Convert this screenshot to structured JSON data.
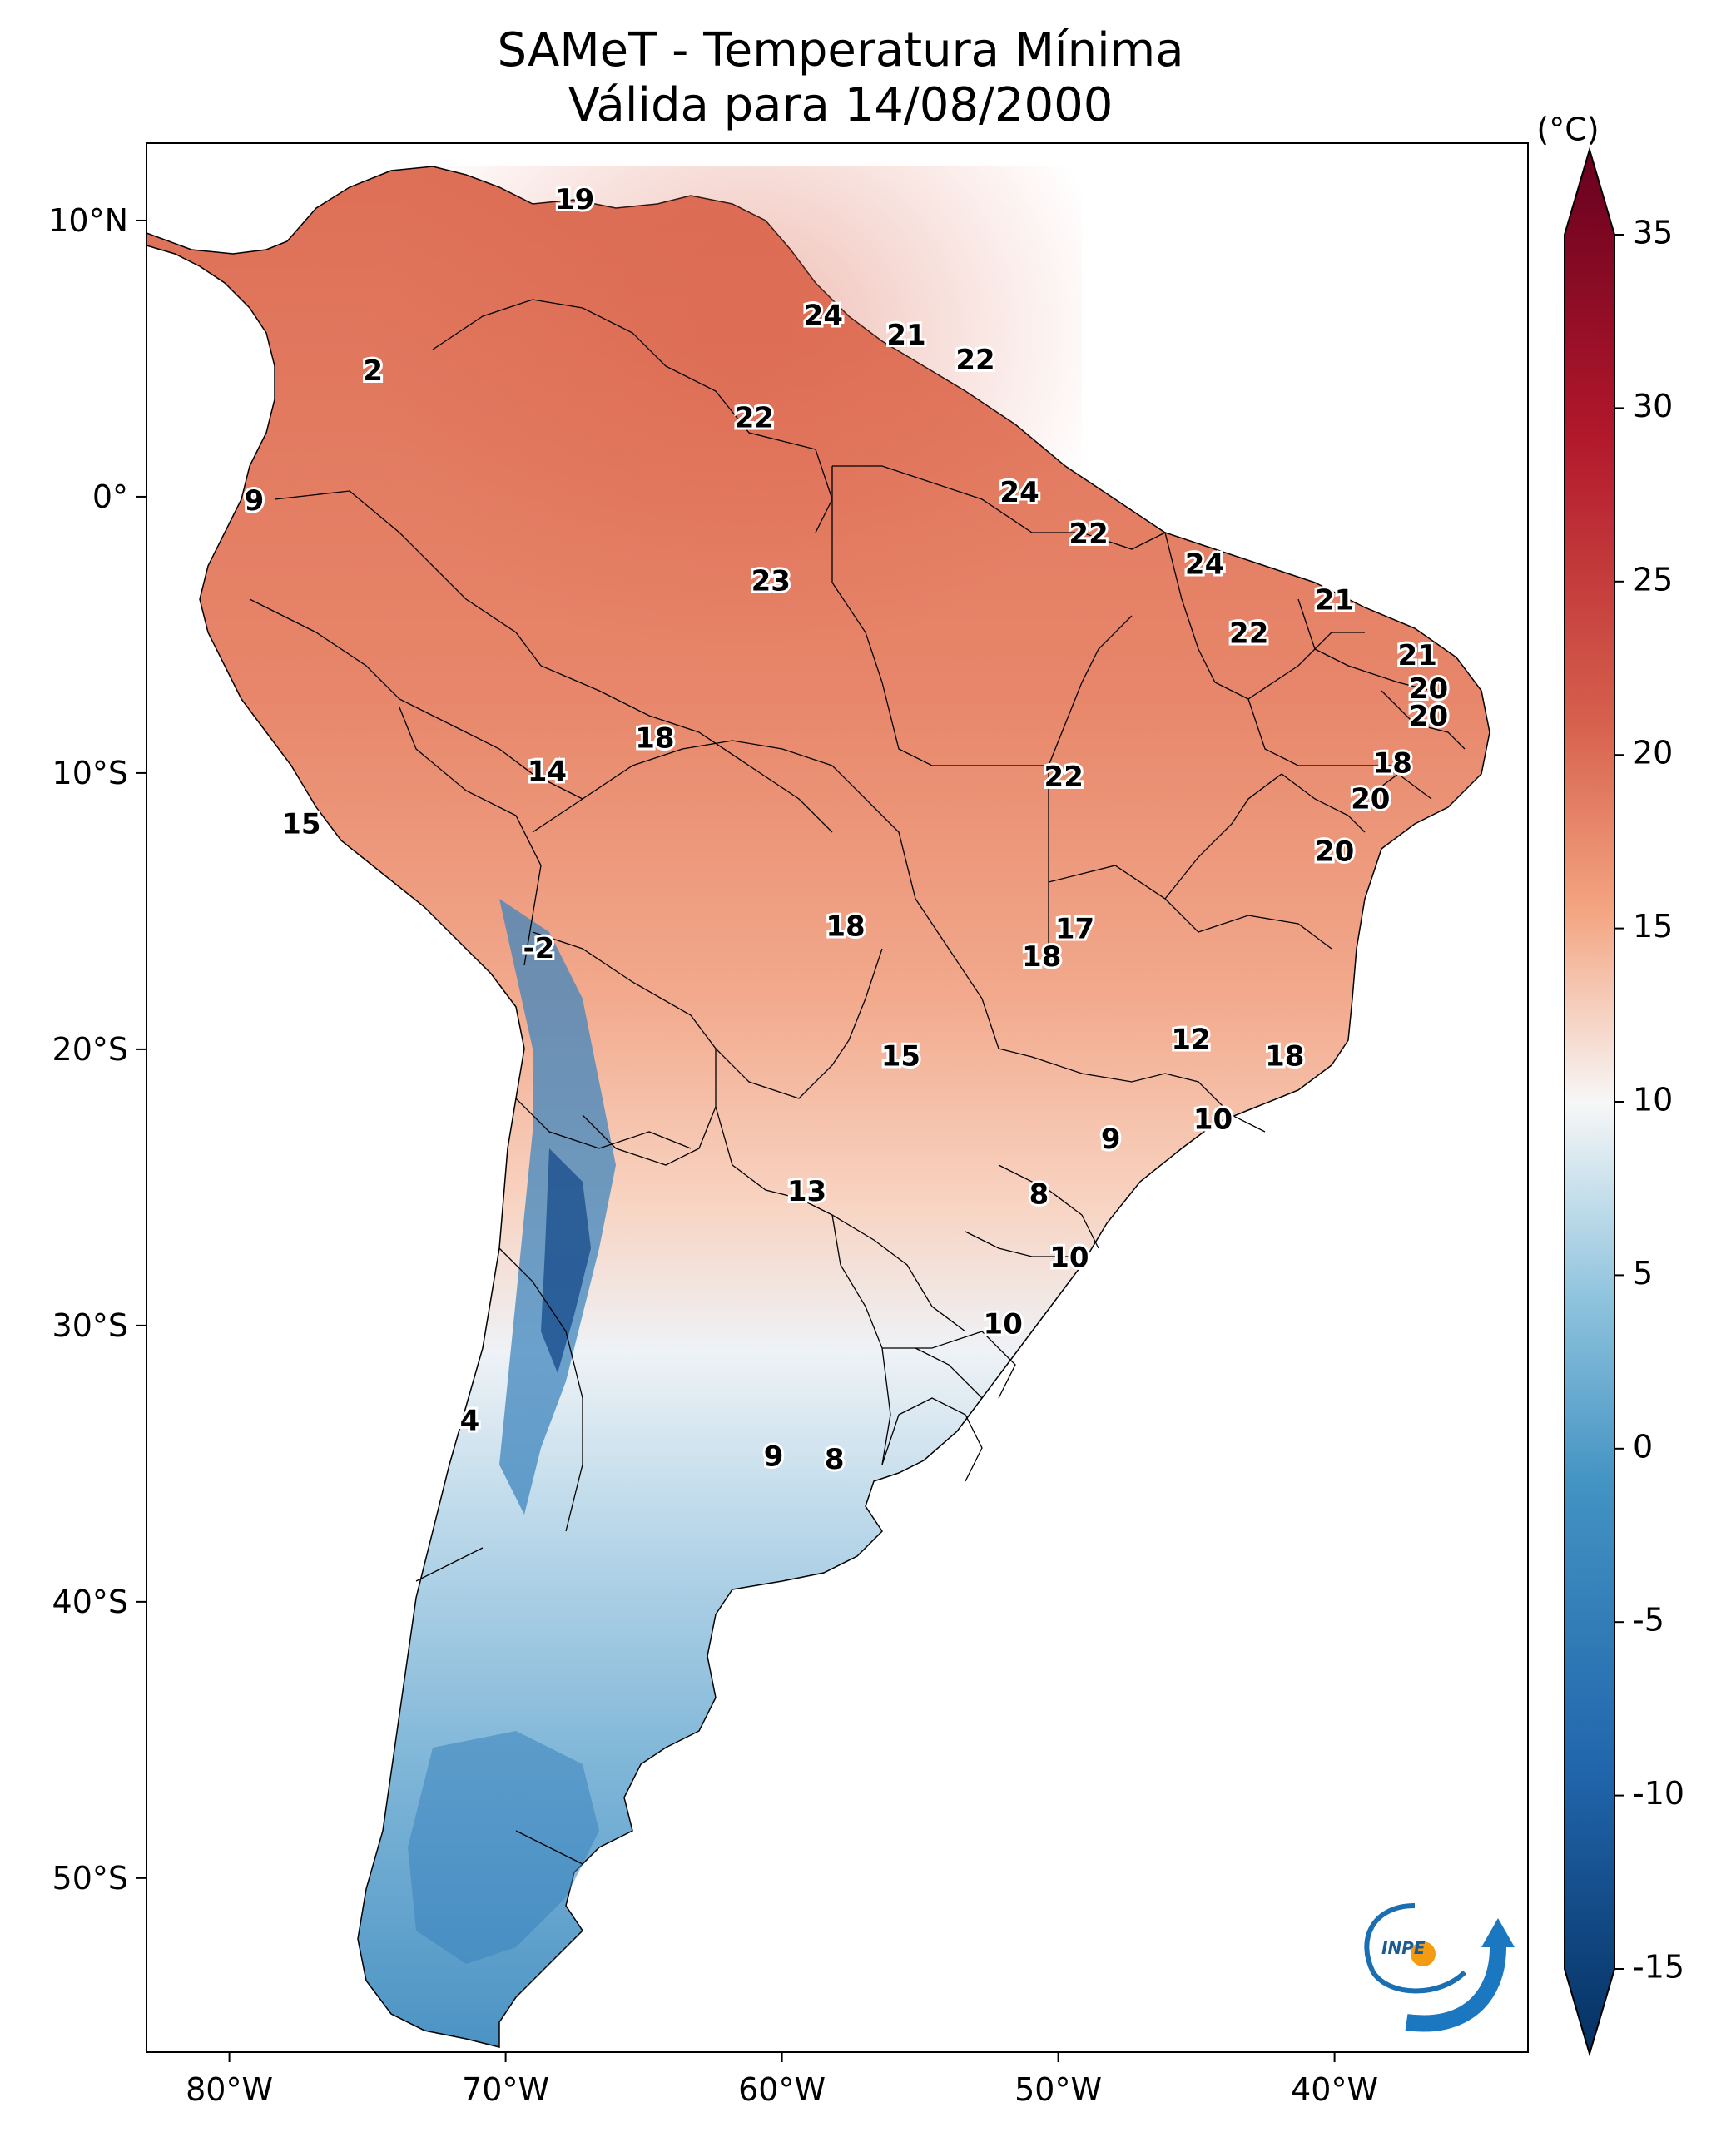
{
  "title": {
    "line1": "SAMeT - Temperatura Mínima",
    "line2": "Válida para 14/08/2000"
  },
  "colorbar": {
    "unit": "(°C)",
    "ticks": [
      "35",
      "30",
      "25",
      "20",
      "15",
      "10",
      "5",
      "0",
      "-5",
      "-10",
      "-15"
    ],
    "min": -15,
    "max": 35,
    "colors": {
      "max": "#67001f",
      "hot": "#d6604d",
      "warm": "#f4a582",
      "neutral": "#f7f7f7",
      "cool": "#92c5de",
      "cold": "#4393c3",
      "min": "#053061"
    }
  },
  "axes": {
    "lon_ticks": [
      "80°W",
      "70°W",
      "60°W",
      "50°W",
      "40°W"
    ],
    "lat_ticks": [
      "10°N",
      "0°",
      "10°S",
      "20°S",
      "30°S",
      "40°S",
      "50°S"
    ]
  },
  "map_labels": [
    {
      "text": "19",
      "lon": -67.5,
      "lat": 10.7
    },
    {
      "text": "2",
      "lon": -74.8,
      "lat": 4.5
    },
    {
      "text": "24",
      "lon": -58.5,
      "lat": 6.5
    },
    {
      "text": "21",
      "lon": -55.5,
      "lat": 5.8
    },
    {
      "text": "22",
      "lon": -53.0,
      "lat": 4.9
    },
    {
      "text": "22",
      "lon": -61.0,
      "lat": 2.8
    },
    {
      "text": "9",
      "lon": -79.1,
      "lat": -0.2
    },
    {
      "text": "24",
      "lon": -51.4,
      "lat": 0.1
    },
    {
      "text": "22",
      "lon": -48.9,
      "lat": -1.4
    },
    {
      "text": "24",
      "lon": -44.7,
      "lat": -2.5
    },
    {
      "text": "23",
      "lon": -60.4,
      "lat": -3.1
    },
    {
      "text": "21",
      "lon": -40.0,
      "lat": -3.8
    },
    {
      "text": "22",
      "lon": -43.1,
      "lat": -5.0
    },
    {
      "text": "21",
      "lon": -37.0,
      "lat": -5.8
    },
    {
      "text": "20",
      "lon": -36.6,
      "lat": -7.0
    },
    {
      "text": "20",
      "lon": -36.6,
      "lat": -8.0
    },
    {
      "text": "18",
      "lon": -64.6,
      "lat": -8.8
    },
    {
      "text": "14",
      "lon": -68.5,
      "lat": -10.0
    },
    {
      "text": "22",
      "lon": -49.8,
      "lat": -10.2
    },
    {
      "text": "18",
      "lon": -37.9,
      "lat": -9.7
    },
    {
      "text": "20",
      "lon": -38.7,
      "lat": -11.0
    },
    {
      "text": "15",
      "lon": -77.4,
      "lat": -11.9
    },
    {
      "text": "20",
      "lon": -40.0,
      "lat": -12.9
    },
    {
      "text": "18",
      "lon": -57.7,
      "lat": -15.6
    },
    {
      "text": "17",
      "lon": -49.4,
      "lat": -15.7
    },
    {
      "text": "18",
      "lon": -50.6,
      "lat": -16.7
    },
    {
      "text": "-2",
      "lon": -68.8,
      "lat": -16.4
    },
    {
      "text": "12",
      "lon": -45.2,
      "lat": -19.7
    },
    {
      "text": "15",
      "lon": -55.7,
      "lat": -20.3
    },
    {
      "text": "18",
      "lon": -41.8,
      "lat": -20.3
    },
    {
      "text": "10",
      "lon": -44.4,
      "lat": -22.6
    },
    {
      "text": "9",
      "lon": -48.1,
      "lat": -23.3
    },
    {
      "text": "13",
      "lon": -59.1,
      "lat": -25.2
    },
    {
      "text": "8",
      "lon": -50.7,
      "lat": -25.3
    },
    {
      "text": "10",
      "lon": -49.6,
      "lat": -27.6
    },
    {
      "text": "10",
      "lon": -52.0,
      "lat": -30.0
    },
    {
      "text": "4",
      "lon": -71.3,
      "lat": -33.5
    },
    {
      "text": "9",
      "lon": -60.3,
      "lat": -34.8
    },
    {
      "text": "8",
      "lon": -58.1,
      "lat": -34.9
    }
  ]
}
